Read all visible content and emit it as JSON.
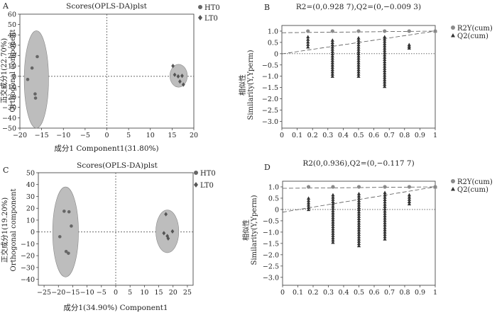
{
  "colors": {
    "hollow": "#666666",
    "diamond": "#555555",
    "ellipse": "#bdbdbd",
    "r2": "#8a8a8a",
    "q2": "#333333",
    "text": "#222222"
  },
  "chart_data": [
    {
      "panel": "A",
      "type": "scatter",
      "title": "Scores(OPLS-DA)plst",
      "xlabel": "成分1 Component1(31.80%)",
      "ylabel_cn": "正交成分1(22.70%)",
      "ylabel_en": "Orthogonal component",
      "xlim": [
        -20,
        20
      ],
      "ylim": [
        -50,
        60
      ],
      "xticks": [
        -20,
        -15,
        -10,
        -5,
        0,
        5,
        10,
        15,
        20
      ],
      "yticks": [
        -50,
        -40,
        -30,
        -20,
        -10,
        0,
        10,
        20,
        30,
        40,
        50,
        60
      ],
      "legend": "top-right",
      "series": [
        {
          "name": "HT0",
          "marker": "circle",
          "points": [
            [
              -16.0,
              19.0
            ],
            [
              -17.2,
              8.0
            ],
            [
              -18.2,
              -3.0
            ],
            [
              -16.5,
              -17.0
            ],
            [
              -16.4,
              -21.0
            ]
          ],
          "ellipse": {
            "cx": -16.2,
            "cy": -3.0,
            "rx": 2.8,
            "ry": 47.0
          }
        },
        {
          "name": "LT0",
          "marker": "diamond",
          "points": [
            [
              15.2,
              10.0
            ],
            [
              15.6,
              1.5
            ],
            [
              16.4,
              0.0
            ],
            [
              17.3,
              0.5
            ],
            [
              16.8,
              -5.0
            ],
            [
              17.6,
              -8.0
            ]
          ],
          "ellipse": {
            "cx": 16.5,
            "cy": 0.5,
            "rx": 2.0,
            "ry": 11.0
          }
        }
      ]
    },
    {
      "panel": "B",
      "type": "scatter",
      "title": "R2=(0,0.928 7),Q2=(0,−0.009 3)",
      "xlabel": "",
      "ylabel_cn": "相似性",
      "ylabel_en": "Similarity(Y,Yperm)",
      "xlim": [
        0,
        1
      ],
      "ylim": [
        -3.3,
        1.25
      ],
      "xticks": [
        0,
        0.1,
        0.2,
        0.3,
        0.4,
        0.5,
        0.6,
        0.7,
        0.8,
        0.9,
        1
      ],
      "yticks": [
        -3.0,
        -2.5,
        -2.0,
        -1.5,
        -1.0,
        -0.5,
        0,
        0.5,
        1.0
      ],
      "legend": "top-right",
      "r2_intercept": 0.9287,
      "q2_intercept": -0.0093,
      "series": [
        {
          "name": "R2Y(cum)",
          "marker": "circle",
          "points": [
            [
              0.17,
              1.0
            ],
            [
              0.33,
              1.0
            ],
            [
              0.5,
              1.0
            ],
            [
              0.67,
              1.0
            ],
            [
              0.83,
              1.0
            ],
            [
              1.0,
              1.0
            ]
          ]
        },
        {
          "name": "Q2(cum)",
          "marker": "triangle",
          "columns": [
            {
              "x": 0.17,
              "ymin": 0.3,
              "ymax": 0.75
            },
            {
              "x": 0.33,
              "ymin": -1.0,
              "ymax": 0.6
            },
            {
              "x": 0.5,
              "ymin": -1.0,
              "ymax": 0.7
            },
            {
              "x": 0.67,
              "ymin": -1.45,
              "ymax": 0.75
            },
            {
              "x": 0.83,
              "ymin": 0.25,
              "ymax": 0.4
            }
          ],
          "final": [
            1.0,
            1.0
          ]
        }
      ]
    },
    {
      "panel": "C",
      "type": "scatter",
      "title": "Scores(OPLS-DA)plst",
      "xlabel": "成分1(34.90%) Component1",
      "ylabel_cn": "正交成分1(19.20%)",
      "ylabel_en": "Orthogonal component",
      "xlim": [
        -27,
        27
      ],
      "ylim": [
        -45,
        50
      ],
      "xticks": [
        -25,
        -20,
        -15,
        -10,
        -5,
        0,
        5,
        10,
        15,
        20,
        25
      ],
      "yticks": [
        -40,
        -30,
        -20,
        -10,
        0,
        10,
        20,
        30,
        40,
        50
      ],
      "legend": "top-right",
      "series": [
        {
          "name": "HT0",
          "marker": "circle",
          "points": [
            [
              -18.0,
              17.5
            ],
            [
              -16.3,
              17.0
            ],
            [
              -15.5,
              5.0
            ],
            [
              -19.5,
              -4.0
            ],
            [
              -17.3,
              -16.5
            ],
            [
              -16.5,
              -18.0
            ]
          ],
          "ellipse": {
            "cx": -17.5,
            "cy": 0.0,
            "rx": 4.5,
            "ry": 38.0
          }
        },
        {
          "name": "LT0",
          "marker": "diamond",
          "points": [
            [
              17.5,
              15.0
            ],
            [
              19.8,
              0.5
            ],
            [
              16.8,
              -1.0
            ],
            [
              18.0,
              -3.5
            ],
            [
              18.3,
              -5.5
            ]
          ],
          "ellipse": {
            "cx": 18.0,
            "cy": 0.5,
            "rx": 4.0,
            "ry": 18.0
          }
        }
      ]
    },
    {
      "panel": "D",
      "type": "scatter",
      "title": "R2(0,0.936),Q2=(0,−0.117 7)",
      "xlabel": "",
      "ylabel_cn": "相似性",
      "ylabel_en": "Similarity(Y,Yperm)",
      "xlim": [
        0,
        1
      ],
      "ylim": [
        -3.35,
        1.25
      ],
      "xticks": [
        0,
        0.1,
        0.2,
        0.3,
        0.4,
        0.5,
        0.6,
        0.7,
        0.8,
        0.9,
        1.0
      ],
      "yticks": [
        -3.0,
        -2.5,
        -2.0,
        -1.5,
        -1.0,
        -0.5,
        0,
        0.5,
        1.0
      ],
      "legend": "top-right",
      "r2_intercept": 0.936,
      "q2_intercept": -0.1177,
      "series": [
        {
          "name": "R2Y(cum)",
          "marker": "circle",
          "points": [
            [
              0.17,
              1.0
            ],
            [
              0.33,
              1.0
            ],
            [
              0.5,
              1.0
            ],
            [
              0.67,
              1.0
            ],
            [
              0.83,
              1.0
            ],
            [
              1.0,
              1.0
            ]
          ]
        },
        {
          "name": "Q2(cum)",
          "marker": "triangle",
          "columns": [
            {
              "x": 0.17,
              "ymin": 0.0,
              "ymax": 0.5
            },
            {
              "x": 0.33,
              "ymin": -1.45,
              "ymax": 0.65
            },
            {
              "x": 0.5,
              "ymin": -1.6,
              "ymax": 0.7
            },
            {
              "x": 0.67,
              "ymin": -1.3,
              "ymax": 0.75
            },
            {
              "x": 0.83,
              "ymin": 0.25,
              "ymax": 0.65
            }
          ],
          "final": [
            1.0,
            1.0
          ]
        }
      ]
    }
  ]
}
